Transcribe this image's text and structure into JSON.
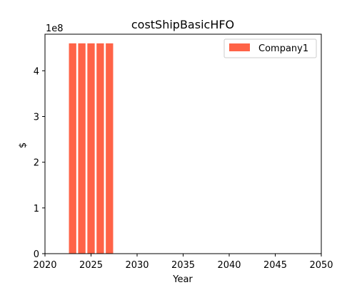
{
  "chart_data": {
    "type": "bar",
    "title": "costShipBasicHFO",
    "xlabel": "Year",
    "ylabel": "$",
    "y_offset_label": "1e8",
    "xlim": [
      2020,
      2050
    ],
    "ylim": [
      0,
      4.8
    ],
    "x_ticks": [
      2020,
      2025,
      2030,
      2035,
      2040,
      2045,
      2050
    ],
    "y_ticks": [
      0,
      1,
      2,
      3,
      4
    ],
    "grid": false,
    "legend_position": "top-right",
    "series": [
      {
        "name": "Company1",
        "color": "#ff6347",
        "x": [
          2023,
          2024,
          2025,
          2026,
          2027
        ],
        "values": [
          4.6,
          4.6,
          4.6,
          4.6,
          4.6
        ]
      }
    ]
  }
}
